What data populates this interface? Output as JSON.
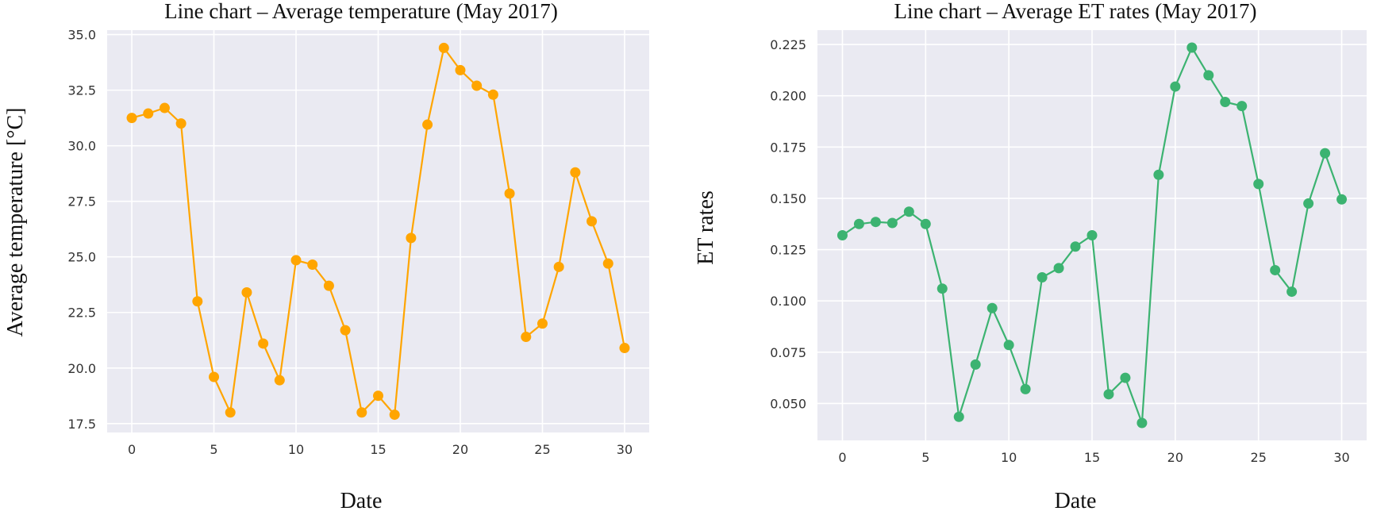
{
  "chart_data": [
    {
      "type": "line",
      "title": "Line chart – Average temperature (May 2017)",
      "xlabel": "Date",
      "ylabel": "Average temperature [°C]",
      "xlim": [
        -1.5,
        31.5
      ],
      "ylim": [
        17.1,
        35.2
      ],
      "xticks": [
        0,
        5,
        10,
        15,
        20,
        25,
        30
      ],
      "yticks": [
        17.5,
        20.0,
        22.5,
        25.0,
        27.5,
        30.0,
        32.5,
        35.0
      ],
      "ytick_labels": [
        "17.5",
        "20.0",
        "22.5",
        "25.0",
        "27.5",
        "30.0",
        "32.5",
        "35.0"
      ],
      "grid": true,
      "background": "#eaeaf2",
      "color": "#ffa500",
      "series": [
        {
          "x": [
            0,
            1,
            2,
            3,
            4,
            5,
            6,
            7,
            8,
            9,
            10,
            11,
            12,
            13,
            14,
            15,
            16,
            17,
            18,
            19,
            20,
            21,
            22,
            23,
            24,
            25,
            26,
            27,
            28,
            29,
            30
          ],
          "values": [
            31.25,
            31.45,
            31.7,
            31.0,
            23.0,
            19.6,
            18.0,
            23.4,
            21.1,
            19.45,
            24.85,
            24.65,
            23.7,
            21.7,
            18.0,
            18.75,
            17.9,
            25.85,
            30.95,
            34.4,
            33.4,
            32.7,
            32.3,
            27.85,
            21.4,
            22.0,
            24.55,
            28.8,
            26.6,
            24.7,
            20.9
          ]
        }
      ]
    },
    {
      "type": "line",
      "title": "Line chart – Average ET rates (May 2017)",
      "xlabel": "Date",
      "ylabel": "ET rates",
      "xlim": [
        -1.5,
        31.5
      ],
      "ylim": [
        0.032,
        0.232
      ],
      "xticks": [
        0,
        5,
        10,
        15,
        20,
        25,
        30
      ],
      "yticks": [
        0.05,
        0.075,
        0.1,
        0.125,
        0.15,
        0.175,
        0.2,
        0.225
      ],
      "ytick_labels": [
        "0.050",
        "0.075",
        "0.100",
        "0.125",
        "0.150",
        "0.175",
        "0.200",
        "0.225"
      ],
      "grid": true,
      "background": "#eaeaf2",
      "color": "#3cb371",
      "series": [
        {
          "x": [
            0,
            1,
            2,
            3,
            4,
            5,
            6,
            7,
            8,
            9,
            10,
            11,
            12,
            13,
            14,
            15,
            16,
            17,
            18,
            19,
            20,
            21,
            22,
            23,
            24,
            25,
            26,
            27,
            28,
            29,
            30
          ],
          "values": [
            0.132,
            0.1375,
            0.1385,
            0.138,
            0.1435,
            0.1375,
            0.106,
            0.0435,
            0.069,
            0.0965,
            0.0785,
            0.057,
            0.1115,
            0.116,
            0.1265,
            0.132,
            0.0545,
            0.0625,
            0.0405,
            0.1615,
            0.2045,
            0.2235,
            0.21,
            0.197,
            0.195,
            0.157,
            0.115,
            0.1045,
            0.1475,
            0.172,
            0.1495
          ]
        }
      ]
    }
  ]
}
